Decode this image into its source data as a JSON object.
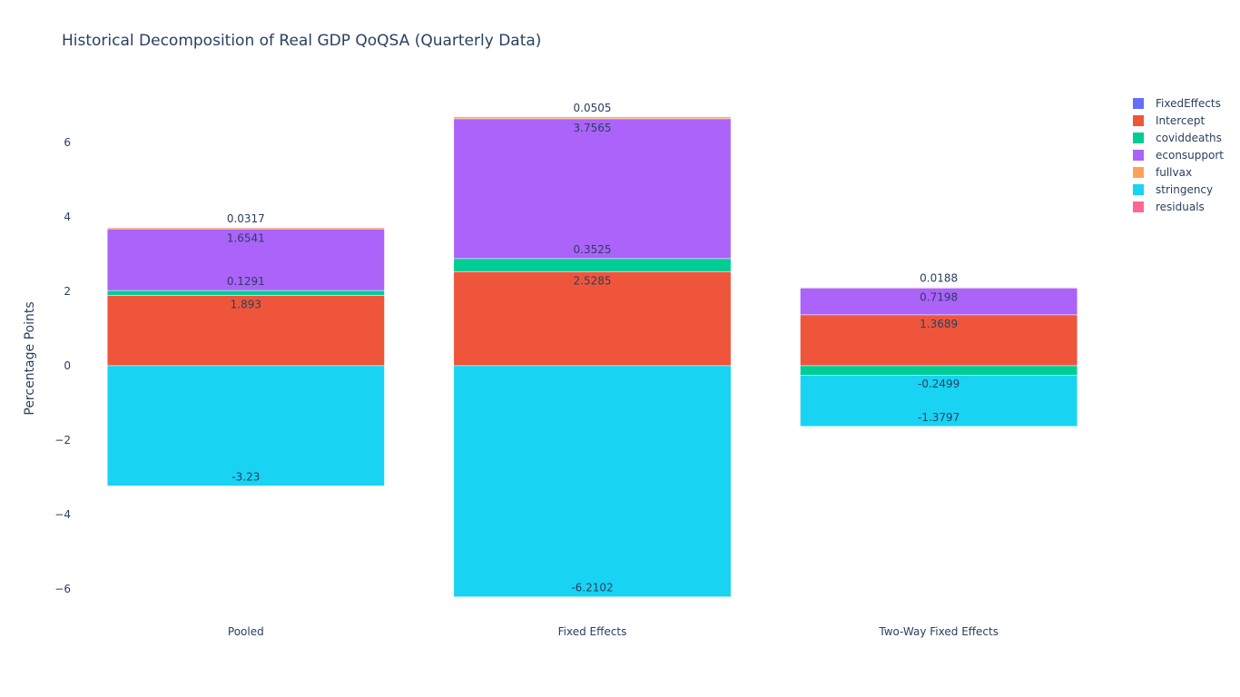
{
  "chart_data": {
    "type": "bar",
    "barmode": "relative",
    "title": "Historical Decomposition of Real GDP QoQSA (Quarterly Data)",
    "xlabel": "",
    "ylabel": "Percentage Points",
    "categories": [
      "Pooled",
      "Fixed Effects",
      "Two-Way Fixed Effects"
    ],
    "ylim": [
      -6.7,
      7.4
    ],
    "yticks": [
      -6,
      -4,
      -2,
      0,
      2,
      4,
      6
    ],
    "ytick_labels": [
      "−6",
      "−4",
      "−2",
      "0",
      "2",
      "4",
      "6"
    ],
    "grid": false,
    "legend_position": "top-right",
    "series": [
      {
        "name": "FixedEffects",
        "color": "#636efa",
        "values": [
          0,
          0,
          0
        ],
        "labels": [
          "",
          "",
          ""
        ]
      },
      {
        "name": "Intercept",
        "color": "#ef553b",
        "values": [
          1.893,
          2.5285,
          1.3689
        ],
        "labels": [
          "1.893",
          "2.5285",
          "1.3689"
        ]
      },
      {
        "name": "coviddeaths",
        "color": "#00cc96",
        "values": [
          0.1291,
          0.3525,
          -0.2499
        ],
        "labels": [
          "0.1291",
          "0.3525",
          "-0.2499"
        ]
      },
      {
        "name": "econsupport",
        "color": "#ab63fa",
        "values": [
          1.6541,
          3.7565,
          0.7198
        ],
        "labels": [
          "1.6541",
          "3.7565",
          "0.7198"
        ]
      },
      {
        "name": "fullvax",
        "color": "#ffa15a",
        "values": [
          0.0317,
          0.0505,
          0.0188
        ],
        "labels": [
          "0.0317",
          "0.0505",
          "0.0188"
        ]
      },
      {
        "name": "stringency",
        "color": "#19d3f3",
        "values": [
          -3.23,
          -6.2102,
          -1.3797
        ],
        "labels": [
          "-3.23",
          "-6.2102",
          "-1.3797"
        ]
      },
      {
        "name": "residuals",
        "color": "#ff6692",
        "values": [
          0,
          0,
          0
        ],
        "labels": [
          "",
          "",
          ""
        ]
      }
    ]
  }
}
